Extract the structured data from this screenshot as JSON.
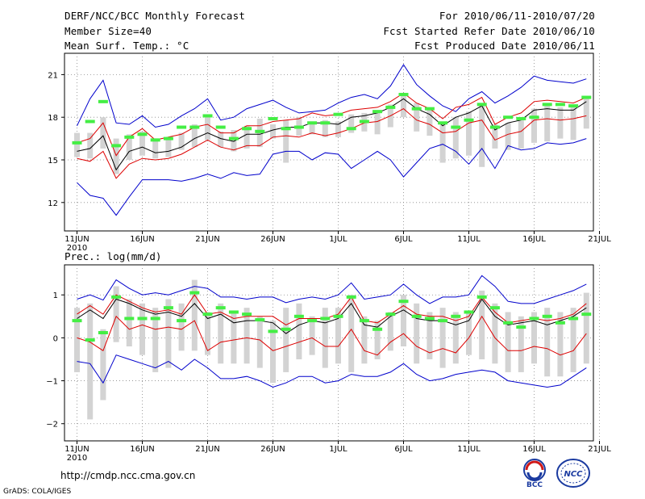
{
  "header": {
    "title": "DERF/NCC/BCC Monthly Forecast",
    "members": "Member Size=40",
    "variable": "Mean Surf. Temp.: °C",
    "period": "For 2010/06/11-2010/07/20",
    "start": "Fcst Started Refer Date 2010/06/10",
    "produced": "Fcst Produced Date 2010/06/11"
  },
  "footer": {
    "url": "http://cmdp.ncc.cma.gov.cn",
    "credit": "GrADS: COLA/IGES",
    "logo_left_text": "BCC",
    "logo_right_text": "NCC"
  },
  "colors": {
    "envelope": "#0000cc",
    "spread": "#dd0000",
    "ensemble_mean": "#000000",
    "member_bar": "#d3d3d3",
    "mode_marker": "#44ee44"
  },
  "chart_data": [
    {
      "type": "line",
      "title": "Mean Surf. Temp.: °C",
      "x_tick_labels": [
        "11JUN",
        "16JUN",
        "21JUN",
        "26JUN",
        "1JUL",
        "6JUL",
        "11JUL",
        "16JUL",
        "21JUL"
      ],
      "x_sub_label": "2010",
      "ylim": [
        10,
        22.5
      ],
      "y_ticks": [
        12,
        15,
        18,
        21
      ],
      "y_tick_labels": [
        "12",
        "15",
        "18",
        "21"
      ],
      "days": [
        0,
        1,
        2,
        3,
        4,
        5,
        6,
        7,
        8,
        9,
        10,
        11,
        12,
        13,
        14,
        15,
        16,
        17,
        18,
        19,
        20,
        21,
        22,
        23,
        24,
        25,
        26,
        27,
        28,
        29,
        30,
        31,
        32,
        33,
        34,
        35,
        36,
        37,
        38,
        39
      ],
      "series": [
        {
          "name": "max",
          "values": [
            17.4,
            19.3,
            20.6,
            17.6,
            17.5,
            18.1,
            17.3,
            17.5,
            18.1,
            18.6,
            19.3,
            17.8,
            18.0,
            18.6,
            18.9,
            19.2,
            18.7,
            18.3,
            18.4,
            18.5,
            19.0,
            19.4,
            19.6,
            19.3,
            20.2,
            21.7,
            20.3,
            19.5,
            18.8,
            18.4,
            19.3,
            19.8,
            19.0,
            19.5,
            20.1,
            20.9,
            20.6,
            20.5,
            20.4,
            20.7
          ]
        },
        {
          "name": "upper",
          "values": [
            16.2,
            16.5,
            17.6,
            15.3,
            16.6,
            17.2,
            16.4,
            16.6,
            16.8,
            17.3,
            17.5,
            16.9,
            16.9,
            17.4,
            17.4,
            17.7,
            17.8,
            17.9,
            18.3,
            18.1,
            18.2,
            18.5,
            18.6,
            18.7,
            19.1,
            19.7,
            19.0,
            18.6,
            17.9,
            18.7,
            18.9,
            19.4,
            17.5,
            18.0,
            18.3,
            19.1,
            19.2,
            19.1,
            19.0,
            19.4
          ]
        },
        {
          "name": "mean",
          "values": [
            15.6,
            15.8,
            16.7,
            14.3,
            15.6,
            15.9,
            15.5,
            15.6,
            15.9,
            16.5,
            16.9,
            16.5,
            16.3,
            16.8,
            16.8,
            17.1,
            17.3,
            17.3,
            17.6,
            17.6,
            17.5,
            18.0,
            18.1,
            18.3,
            18.7,
            19.3,
            18.6,
            18.2,
            17.4,
            18.0,
            18.3,
            18.8,
            17.1,
            17.6,
            17.8,
            18.5,
            18.6,
            18.5,
            18.5,
            19.1
          ]
        },
        {
          "name": "lower",
          "values": [
            15.1,
            14.9,
            15.6,
            13.7,
            14.7,
            15.1,
            15.0,
            15.1,
            15.4,
            15.9,
            16.4,
            15.9,
            15.7,
            16.0,
            16.0,
            16.6,
            16.7,
            16.6,
            16.9,
            16.7,
            16.9,
            17.2,
            17.6,
            17.7,
            18.1,
            18.6,
            17.8,
            17.5,
            16.9,
            17.0,
            17.6,
            17.8,
            16.4,
            16.8,
            17.0,
            17.8,
            17.9,
            17.8,
            17.9,
            18.1
          ]
        },
        {
          "name": "min",
          "values": [
            13.4,
            12.5,
            12.3,
            11.1,
            12.4,
            13.6,
            13.6,
            13.6,
            13.5,
            13.7,
            14.0,
            13.7,
            14.1,
            13.9,
            14.0,
            15.4,
            15.6,
            15.6,
            15.0,
            15.5,
            15.4,
            14.4,
            15.0,
            15.6,
            15.0,
            13.8,
            14.8,
            15.8,
            16.1,
            15.6,
            14.7,
            15.8,
            14.4,
            16.0,
            15.7,
            15.8,
            16.2,
            16.1,
            16.2,
            16.5
          ]
        }
      ],
      "bars": {
        "low": [
          15.2,
          15.1,
          15.8,
          14.0,
          15.0,
          15.3,
          15.1,
          15.2,
          15.7,
          15.9,
          16.4,
          15.9,
          15.6,
          15.8,
          15.9,
          16.5,
          14.8,
          16.7,
          16.8,
          16.6,
          16.6,
          16.9,
          17.0,
          16.8,
          17.3,
          18.0,
          17.0,
          16.7,
          14.8,
          15.1,
          15.3,
          14.5,
          15.8,
          15.7,
          15.8,
          16.2,
          16.3,
          16.5,
          16.4,
          17.2
        ],
        "high": [
          16.9,
          16.9,
          18.0,
          16.5,
          16.8,
          17.0,
          16.5,
          16.6,
          16.9,
          17.5,
          18.0,
          17.0,
          17.1,
          17.4,
          17.9,
          17.5,
          17.8,
          18.0,
          17.5,
          17.8,
          17.7,
          18.2,
          18.3,
          18.5,
          18.9,
          19.5,
          19.0,
          18.6,
          17.7,
          18.0,
          18.4,
          18.9,
          17.5,
          17.6,
          18.0,
          18.6,
          18.8,
          18.7,
          18.8,
          19.4
        ],
        "mode": [
          16.2,
          17.7,
          19.1,
          16.0,
          16.6,
          16.8,
          16.4,
          16.5,
          17.3,
          17.3,
          18.1,
          17.3,
          16.5,
          17.2,
          17.0,
          17.9,
          17.2,
          17.3,
          17.6,
          17.6,
          18.2,
          17.2,
          17.7,
          18.4,
          18.7,
          19.6,
          18.6,
          18.6,
          17.6,
          17.3,
          17.8,
          18.9,
          17.3,
          18.0,
          17.9,
          18.0,
          18.9,
          18.9,
          18.8,
          19.4
        ]
      }
    },
    {
      "type": "line",
      "title": "Prec.: log(mm/d)",
      "x_tick_labels": [
        "11JUN",
        "16JUN",
        "21JUN",
        "26JUN",
        "1JUL",
        "6JUL",
        "11JUL",
        "16JUL",
        "21JUL"
      ],
      "x_sub_label": "2010",
      "ylim": [
        -2.4,
        1.7
      ],
      "y_ticks": [
        -2,
        -1,
        0,
        1
      ],
      "y_tick_labels": [
        "−2",
        "−1",
        "0",
        "1"
      ],
      "days": [
        0,
        1,
        2,
        3,
        4,
        5,
        6,
        7,
        8,
        9,
        10,
        11,
        12,
        13,
        14,
        15,
        16,
        17,
        18,
        19,
        20,
        21,
        22,
        23,
        24,
        25,
        26,
        27,
        28,
        29,
        30,
        31,
        32,
        33,
        34,
        35,
        36,
        37,
        38,
        39
      ],
      "series": [
        {
          "name": "max",
          "values": [
            0.9,
            1.0,
            0.88,
            1.35,
            1.15,
            1.0,
            1.05,
            1.0,
            1.1,
            1.2,
            1.15,
            0.95,
            0.95,
            0.9,
            0.95,
            0.95,
            0.82,
            0.9,
            0.95,
            0.9,
            1.0,
            1.28,
            0.9,
            0.95,
            1.0,
            1.25,
            1.0,
            0.8,
            0.95,
            0.95,
            1.0,
            1.45,
            1.2,
            0.85,
            0.8,
            0.8,
            0.9,
            1.0,
            1.1,
            1.25
          ]
        },
        {
          "name": "upper",
          "values": [
            0.55,
            0.75,
            0.55,
            1.0,
            0.85,
            0.7,
            0.6,
            0.65,
            0.55,
            1.0,
            0.55,
            0.6,
            0.45,
            0.5,
            0.5,
            0.5,
            0.3,
            0.45,
            0.45,
            0.45,
            0.55,
            0.95,
            0.4,
            0.35,
            0.55,
            0.75,
            0.55,
            0.5,
            0.5,
            0.4,
            0.5,
            0.95,
            0.6,
            0.35,
            0.4,
            0.45,
            0.4,
            0.45,
            0.55,
            0.8
          ]
        },
        {
          "name": "mean",
          "values": [
            0.45,
            0.65,
            0.45,
            0.9,
            0.8,
            0.65,
            0.55,
            0.6,
            0.5,
            0.8,
            0.45,
            0.55,
            0.35,
            0.4,
            0.4,
            0.35,
            0.1,
            0.3,
            0.4,
            0.35,
            0.45,
            0.8,
            0.3,
            0.25,
            0.5,
            0.65,
            0.45,
            0.4,
            0.4,
            0.3,
            0.4,
            0.9,
            0.5,
            0.3,
            0.35,
            0.4,
            0.3,
            0.4,
            0.5,
            0.7
          ]
        },
        {
          "name": "lower",
          "values": [
            0.0,
            -0.1,
            -0.3,
            0.5,
            0.2,
            0.3,
            0.2,
            0.25,
            0.2,
            0.4,
            -0.3,
            -0.1,
            -0.05,
            0.0,
            -0.05,
            -0.3,
            -0.2,
            -0.1,
            0.0,
            -0.2,
            -0.2,
            0.2,
            -0.3,
            -0.4,
            -0.1,
            0.1,
            -0.2,
            -0.35,
            -0.25,
            -0.35,
            0.0,
            0.5,
            0.0,
            -0.3,
            -0.3,
            -0.2,
            -0.25,
            -0.4,
            -0.3,
            0.1
          ]
        },
        {
          "name": "min",
          "values": [
            -0.55,
            -0.6,
            -1.05,
            -0.4,
            -0.5,
            -0.6,
            -0.7,
            -0.55,
            -0.75,
            -0.5,
            -0.7,
            -0.95,
            -0.95,
            -0.9,
            -1.0,
            -1.15,
            -1.05,
            -0.9,
            -0.9,
            -1.05,
            -1.0,
            -0.85,
            -0.9,
            -0.9,
            -0.8,
            -0.6,
            -0.85,
            -1.0,
            -0.95,
            -0.85,
            -0.8,
            -0.75,
            -0.8,
            -1.0,
            -1.05,
            -1.1,
            -1.15,
            -1.1,
            -0.9,
            -0.7
          ]
        }
      ],
      "bars": {
        "low": [
          -0.8,
          -1.9,
          -1.45,
          -0.1,
          -0.2,
          -0.4,
          -0.8,
          -0.7,
          -0.3,
          -0.3,
          -0.4,
          -0.6,
          -0.6,
          -0.6,
          -0.7,
          -1.05,
          -0.8,
          -0.5,
          -0.4,
          -0.7,
          -0.6,
          -0.8,
          -0.6,
          -0.5,
          -0.3,
          -0.2,
          -0.6,
          -0.5,
          -0.7,
          -0.6,
          -0.4,
          -0.5,
          -0.6,
          -0.8,
          -0.8,
          -0.6,
          -0.9,
          -0.9,
          -0.8,
          -0.6
        ],
        "high": [
          0.7,
          0.8,
          0.2,
          1.2,
          0.9,
          0.8,
          0.7,
          0.9,
          0.8,
          1.35,
          0.6,
          0.8,
          0.6,
          0.7,
          0.5,
          0.4,
          0.7,
          0.8,
          0.5,
          0.7,
          0.7,
          1.0,
          0.5,
          0.4,
          0.6,
          1.0,
          0.8,
          0.6,
          0.7,
          0.6,
          0.6,
          1.1,
          0.8,
          0.6,
          0.5,
          0.6,
          0.7,
          0.6,
          0.7,
          1.05
        ],
        "mode": [
          0.4,
          -0.05,
          0.12,
          0.95,
          0.45,
          0.45,
          0.45,
          0.7,
          0.4,
          1.05,
          0.55,
          0.7,
          0.6,
          0.55,
          0.42,
          0.15,
          0.2,
          0.5,
          0.4,
          0.45,
          0.5,
          0.95,
          0.4,
          0.2,
          0.55,
          0.85,
          0.5,
          0.45,
          0.4,
          0.5,
          0.6,
          0.95,
          0.7,
          0.35,
          0.25,
          0.45,
          0.5,
          0.35,
          0.45,
          0.55
        ]
      }
    }
  ]
}
